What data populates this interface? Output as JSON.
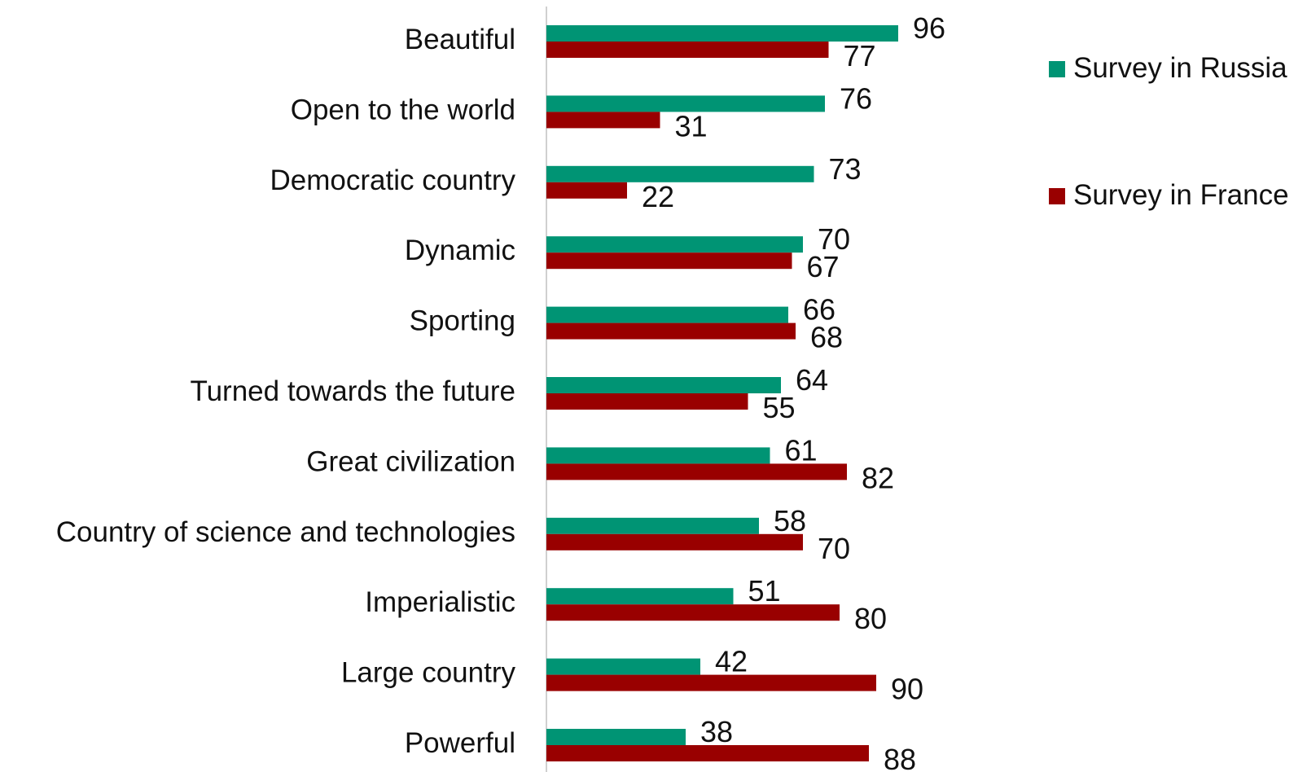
{
  "chart_data": {
    "type": "bar",
    "orientation": "horizontal",
    "title": "",
    "xlabel": "",
    "ylabel": "",
    "xlim": [
      0,
      100
    ],
    "grid": false,
    "legend_position": "right",
    "categories": [
      "Beautiful",
      "Open to the world",
      "Democratic country",
      "Dynamic",
      "Sporting",
      "Turned towards the future",
      "Great civilization",
      "Country of science and technologies",
      "Imperialistic",
      "Large country",
      "Powerful"
    ],
    "series": [
      {
        "name": "Survey in Russia",
        "color": "#009474",
        "values": [
          96,
          76,
          73,
          70,
          66,
          64,
          61,
          58,
          51,
          42,
          38
        ]
      },
      {
        "name": "Survey in France",
        "color": "#990000",
        "values": [
          77,
          31,
          22,
          67,
          68,
          55,
          82,
          70,
          80,
          90,
          88
        ]
      }
    ]
  }
}
